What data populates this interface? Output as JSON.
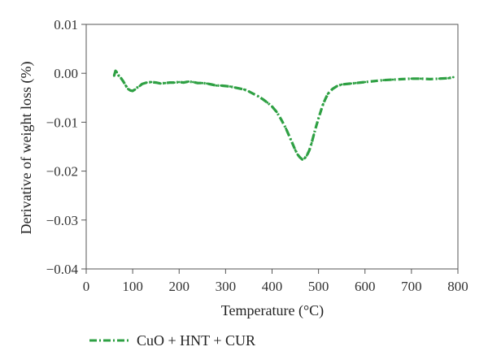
{
  "chart_data": {
    "type": "line",
    "xlabel": "Temperature (°C)",
    "ylabel": "Derivative of weight loss (%)",
    "xlim": [
      0,
      800
    ],
    "ylim": [
      -0.04,
      0.01
    ],
    "x_ticks": [
      0,
      100,
      200,
      300,
      400,
      500,
      600,
      700,
      800
    ],
    "x_tick_labels": [
      "0",
      "100",
      "200",
      "300",
      "400",
      "500",
      "600",
      "700",
      "800"
    ],
    "y_ticks": [
      0.01,
      0.0,
      -0.01,
      -0.02,
      -0.03,
      -0.04
    ],
    "y_tick_labels": [
      "0.01",
      "0.00",
      "−0.01",
      "−0.02",
      "−0.03",
      "−0.04"
    ],
    "grid": false,
    "legend_position": "bottom-left",
    "series": [
      {
        "name": "CuO + HNT + CUR",
        "color": "#2ea043",
        "line_style": "dash-dot",
        "x": [
          60,
          63,
          66,
          70,
          75,
          80,
          85,
          90,
          95,
          100,
          105,
          110,
          115,
          120,
          130,
          140,
          150,
          160,
          170,
          180,
          190,
          200,
          210,
          220,
          230,
          240,
          250,
          260,
          270,
          280,
          290,
          300,
          310,
          320,
          330,
          340,
          350,
          360,
          370,
          380,
          390,
          400,
          410,
          420,
          430,
          440,
          450,
          455,
          460,
          465,
          470,
          475,
          480,
          485,
          490,
          495,
          500,
          505,
          510,
          515,
          520,
          530,
          540,
          550,
          560,
          570,
          580,
          590,
          600,
          620,
          640,
          660,
          680,
          700,
          720,
          740,
          760,
          780,
          790
        ],
        "y": [
          -0.0005,
          0.0005,
          0.0002,
          -0.0005,
          -0.001,
          -0.0017,
          -0.0025,
          -0.0032,
          -0.0035,
          -0.0036,
          -0.0033,
          -0.0029,
          -0.0026,
          -0.0022,
          -0.0019,
          -0.0018,
          -0.0019,
          -0.0021,
          -0.002,
          -0.0019,
          -0.0019,
          -0.0018,
          -0.0019,
          -0.0017,
          -0.0018,
          -0.002,
          -0.002,
          -0.0021,
          -0.0023,
          -0.0025,
          -0.0025,
          -0.0026,
          -0.0027,
          -0.0029,
          -0.0031,
          -0.0033,
          -0.0037,
          -0.0042,
          -0.0047,
          -0.0053,
          -0.006,
          -0.0068,
          -0.0079,
          -0.0095,
          -0.0113,
          -0.0135,
          -0.0157,
          -0.0166,
          -0.0172,
          -0.0176,
          -0.0174,
          -0.0168,
          -0.0158,
          -0.0143,
          -0.0125,
          -0.0108,
          -0.0092,
          -0.0077,
          -0.0063,
          -0.0052,
          -0.0042,
          -0.0032,
          -0.0026,
          -0.0023,
          -0.0022,
          -0.0021,
          -0.002,
          -0.0019,
          -0.0018,
          -0.0016,
          -0.0014,
          -0.0013,
          -0.0012,
          -0.0011,
          -0.0011,
          -0.0012,
          -0.0011,
          -0.001,
          -0.0008
        ]
      }
    ]
  }
}
